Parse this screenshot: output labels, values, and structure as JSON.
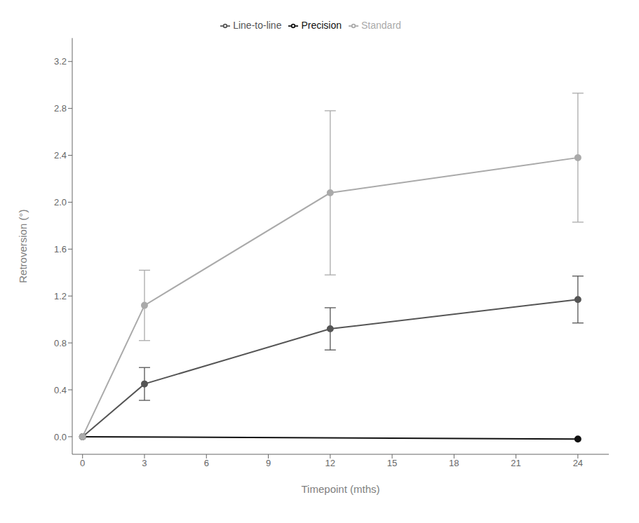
{
  "chart_data": {
    "type": "line",
    "x_label": "Timepoint (mths)",
    "y_label": "Retroversion (°)",
    "series": [
      {
        "name": "Precision",
        "color": "#111111",
        "marker": "circle",
        "x": [
          0,
          24
        ],
        "values": [
          0.0,
          -0.02
        ]
      },
      {
        "name": "Line-to-line",
        "color": "#555555",
        "marker": "circle",
        "x": [
          0,
          3,
          12,
          24
        ],
        "values": [
          0.0,
          0.45,
          0.92,
          1.17
        ],
        "errors": [
          0,
          0.14,
          0.18,
          0.2
        ]
      },
      {
        "name": "Standard",
        "color": "#aaaaaa",
        "marker": "circle",
        "x": [
          0,
          3,
          12,
          24
        ],
        "values": [
          0.0,
          1.12,
          2.08,
          2.38
        ],
        "errors": [
          0,
          0.3,
          0.7,
          0.55
        ]
      }
    ],
    "xlim": [
      -0.5,
      25.5
    ],
    "ylim": [
      -0.15,
      3.4
    ],
    "xticks": [
      0,
      3,
      6,
      9,
      12,
      15,
      18,
      21,
      24
    ],
    "yticks": [
      {
        "value": 0.0,
        "label": "0.0"
      },
      0.4,
      0.8,
      1.2,
      1.6,
      {
        "value": 2.0,
        "label": "2.0"
      },
      2.4,
      2.8,
      3.2
    ],
    "grid": false,
    "legend": "top"
  }
}
